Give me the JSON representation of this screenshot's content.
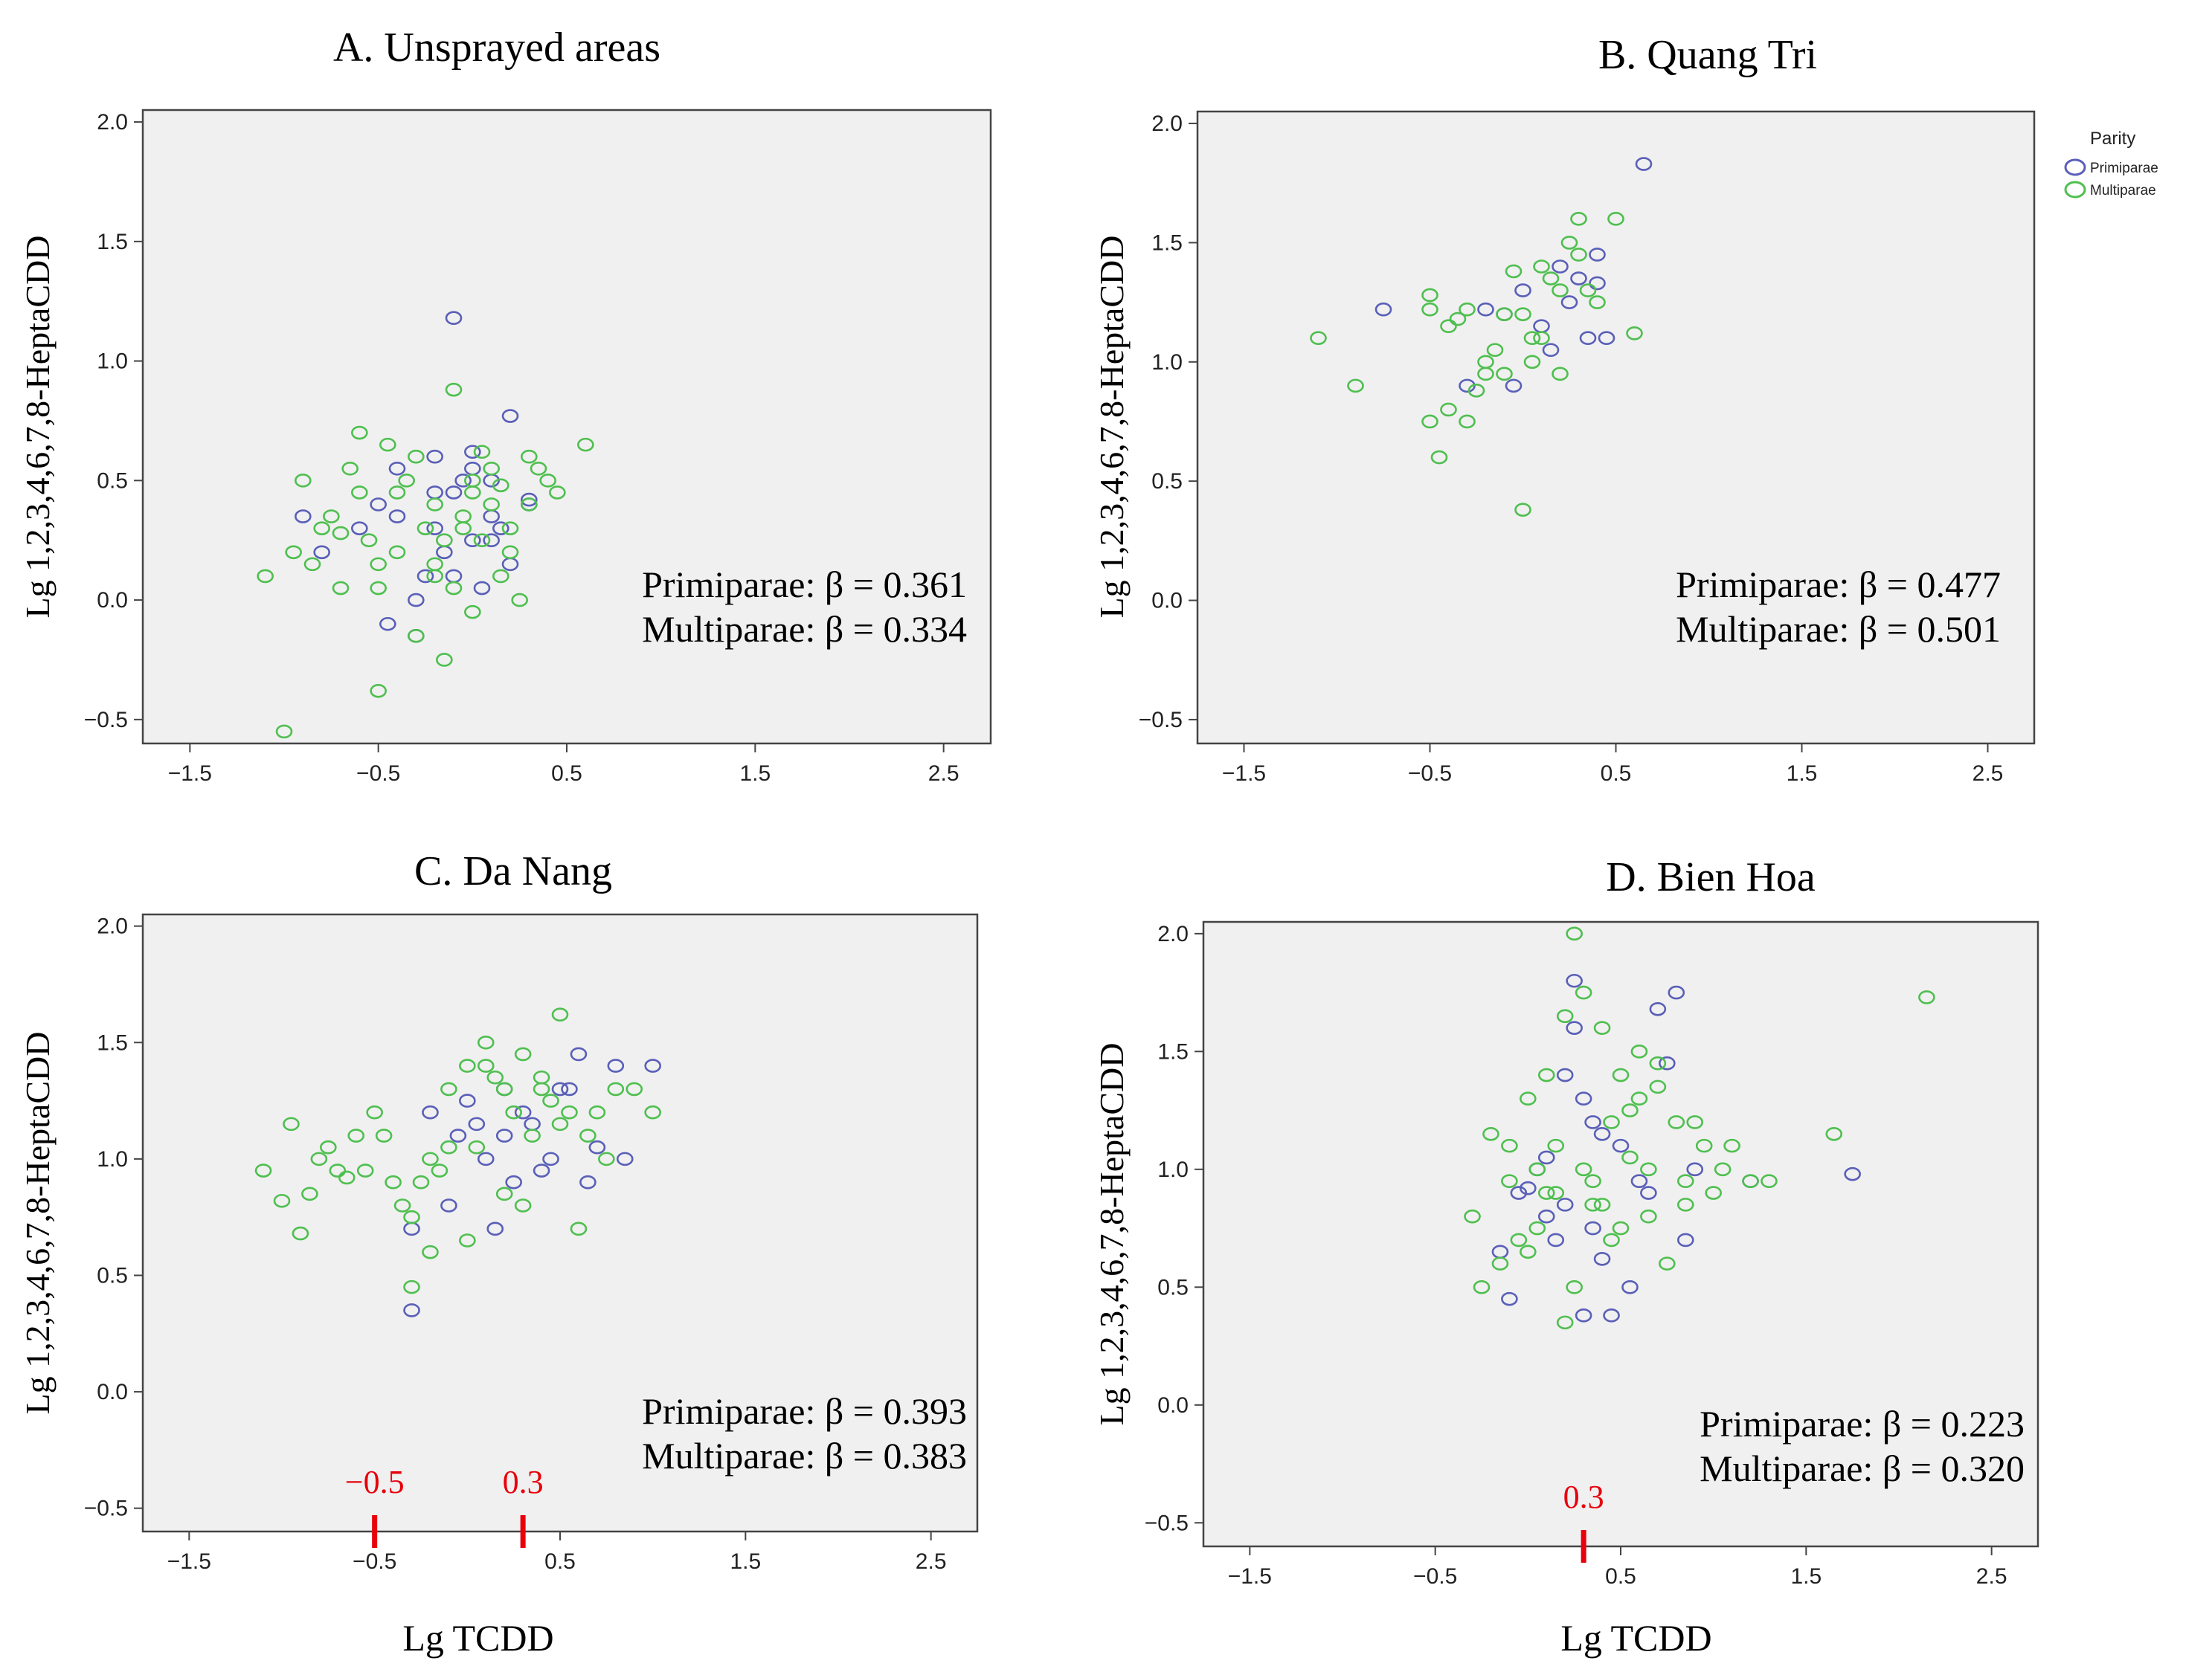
{
  "figure": {
    "legend": {
      "title": "Parity",
      "entries": [
        {
          "name": "Primiparae",
          "color": "#5a5fb8"
        },
        {
          "name": "Multiparae",
          "color": "#4fbf4f"
        }
      ]
    }
  },
  "chart_data": [
    {
      "type": "scatter",
      "title": "A. Unsprayed areas",
      "xlabel": "",
      "ylabel": "Lg 1,2,3,4,6,7,8-HeptaCDD",
      "xlim": [
        -1.75,
        2.75
      ],
      "ylim": [
        -0.6,
        2.05
      ],
      "xticks": [
        -1.5,
        -0.5,
        0.5,
        1.5,
        2.5
      ],
      "xtick_labels": [
        "−1.5",
        "−0.5",
        "0.5",
        "1.5",
        "2.5"
      ],
      "yticks": [
        2.0,
        1.5,
        1.0,
        0.5,
        0.0,
        -0.5
      ],
      "ytick_labels": [
        "2.0",
        "1.5",
        "1.0",
        "0.5",
        "0.0",
        "−0.5"
      ],
      "annotations": [
        "Primiparae: β = 0.361",
        "Multiparae: β = 0.334"
      ],
      "cutoffs": [],
      "series": [
        {
          "name": "Primiparae",
          "x": [
            -0.1,
            0.2,
            -0.4,
            -0.2,
            0.0,
            0.1,
            -0.3,
            0.3,
            -0.5,
            -0.6,
            -0.8,
            -0.9,
            0.0,
            -0.1,
            0.2,
            -0.2,
            -0.4,
            0.05,
            0.1,
            -0.15,
            -0.25,
            0.15,
            0.3,
            -0.05,
            -0.45,
            -0.3,
            0.0,
            -0.2,
            0.1,
            -0.1
          ],
          "y": [
            1.18,
            0.77,
            0.35,
            0.3,
            0.55,
            0.5,
            0.0,
            0.42,
            0.4,
            0.3,
            0.2,
            0.35,
            0.25,
            0.45,
            0.15,
            0.6,
            0.55,
            0.05,
            0.35,
            0.2,
            0.1,
            0.3,
            0.4,
            0.5,
            -0.1,
            -0.15,
            0.62,
            0.45,
            0.25,
            0.1
          ]
        },
        {
          "name": "Multiparae",
          "x": [
            -1.0,
            -0.5,
            -0.1,
            0.6,
            0.4,
            -0.6,
            -0.9,
            -0.8,
            -0.3,
            -0.2,
            0.0,
            0.1,
            0.2,
            -0.4,
            -0.7,
            -1.1,
            0.3,
            -0.5,
            -0.05,
            0.05,
            0.25,
            -0.35,
            -0.15,
            0.15,
            -0.6,
            -0.25,
            0.0,
            -0.45,
            0.1,
            -0.2,
            -0.55,
            0.35,
            -0.75,
            -0.95,
            0.2,
            -0.1,
            0.05,
            -0.3,
            -0.65,
            -0.85,
            -0.4,
            0.45,
            -0.05,
            0.0,
            -0.2,
            -0.5,
            0.15,
            -0.15,
            0.3,
            -0.7
          ],
          "y": [
            -0.55,
            -0.38,
            0.88,
            0.65,
            0.5,
            0.7,
            0.5,
            0.3,
            0.6,
            0.4,
            0.45,
            0.55,
            0.3,
            0.2,
            0.05,
            0.1,
            0.6,
            0.15,
            0.35,
            0.25,
            0.0,
            0.5,
            -0.25,
            0.1,
            0.45,
            0.3,
            -0.05,
            0.65,
            0.4,
            0.15,
            0.25,
            0.55,
            0.35,
            0.2,
            0.2,
            0.05,
            0.62,
            -0.15,
            0.55,
            0.15,
            0.45,
            0.45,
            0.3,
            0.5,
            0.1,
            0.05,
            0.48,
            0.25,
            0.4,
            0.28
          ]
        }
      ]
    },
    {
      "type": "scatter",
      "title": "B. Quang Tri",
      "xlabel": "",
      "ylabel": "Lg 1,2,3,4,6,7,8-HeptaCDD",
      "xlim": [
        -1.75,
        2.75
      ],
      "ylim": [
        -0.6,
        2.05
      ],
      "xticks": [
        -1.5,
        -0.5,
        0.5,
        1.5,
        2.5
      ],
      "xtick_labels": [
        "−1.5",
        "−0.5",
        "0.5",
        "1.5",
        "2.5"
      ],
      "yticks": [
        2.0,
        1.5,
        1.0,
        0.5,
        0.0,
        -0.5
      ],
      "ytick_labels": [
        "2.0",
        "1.5",
        "1.0",
        "0.5",
        "0.0",
        "−0.5"
      ],
      "annotations": [
        "Primiparae: β = 0.477",
        "Multiparae: β = 0.501"
      ],
      "cutoffs": [],
      "series": [
        {
          "name": "Primiparae",
          "x": [
            0.65,
            -0.75,
            -0.2,
            0.0,
            0.4,
            0.2,
            0.45,
            0.1,
            -0.1,
            0.3,
            0.35,
            -0.3,
            -0.05,
            0.25,
            0.15,
            0.4
          ],
          "y": [
            1.83,
            1.22,
            1.22,
            1.3,
            1.45,
            1.4,
            1.1,
            1.15,
            1.2,
            1.35,
            1.1,
            0.9,
            0.9,
            1.25,
            1.05,
            1.33
          ]
        },
        {
          "name": "Multiparae",
          "x": [
            -1.1,
            -0.9,
            -0.5,
            -0.4,
            -0.2,
            0.0,
            0.1,
            0.3,
            0.5,
            0.6,
            -0.3,
            -0.1,
            0.2,
            0.25,
            0.4,
            -0.5,
            -0.35,
            -0.15,
            0.05,
            0.15,
            -0.45,
            -0.25,
            0.0,
            0.35,
            -0.05,
            0.1,
            -0.2,
            -0.4,
            -0.3,
            0.2,
            -0.1,
            0.3,
            0.05,
            -0.5
          ],
          "y": [
            1.1,
            0.9,
            0.75,
            0.8,
            1.0,
            1.2,
            1.4,
            1.6,
            1.6,
            1.12,
            0.75,
            0.95,
            1.3,
            1.5,
            1.25,
            1.28,
            1.18,
            1.05,
            1.1,
            1.35,
            0.6,
            0.88,
            0.38,
            1.3,
            1.38,
            1.1,
            0.95,
            1.15,
            1.22,
            0.95,
            1.2,
            1.45,
            1.0,
            1.22
          ]
        }
      ]
    },
    {
      "type": "scatter",
      "title": "C. Da Nang",
      "xlabel": "Lg TCDD",
      "ylabel": "Lg 1,2,3,4,6,7,8-HeptaCDD",
      "xlim": [
        -1.75,
        2.75
      ],
      "ylim": [
        -0.6,
        2.05
      ],
      "xticks": [
        -1.5,
        -0.5,
        0.5,
        1.5,
        2.5
      ],
      "xtick_labels": [
        "−1.5",
        "−0.5",
        "0.5",
        "1.5",
        "2.5"
      ],
      "yticks": [
        2.0,
        1.5,
        1.0,
        0.5,
        0.0,
        -0.5
      ],
      "ytick_labels": [
        "2.0",
        "1.5",
        "1.0",
        "0.5",
        "0.0",
        "−0.5"
      ],
      "annotations": [
        "Primiparae: β = 0.393",
        "Multiparae: β = 0.383"
      ],
      "cutoffs": [
        {
          "x": -0.5,
          "label": "−0.5"
        },
        {
          "x": 0.3,
          "label": "0.3"
        }
      ],
      "series": [
        {
          "name": "Primiparae",
          "x": [
            -0.3,
            0.8,
            1.0,
            0.6,
            0.2,
            -0.1,
            0.1,
            0.3,
            0.5,
            -0.05,
            0.4,
            0.7,
            0.85,
            0.15,
            -0.2,
            0.0,
            0.25,
            0.35,
            -0.3,
            0.45,
            0.05,
            0.55,
            0.65,
            0.2
          ],
          "y": [
            0.35,
            1.4,
            1.4,
            1.45,
            1.1,
            0.8,
            1.0,
            1.2,
            1.3,
            1.1,
            0.95,
            1.05,
            1.0,
            0.7,
            1.2,
            1.25,
            0.9,
            1.15,
            0.7,
            1.0,
            1.15,
            1.3,
            0.9,
            1.3
          ]
        },
        {
          "name": "Multiparae",
          "x": [
            -1.1,
            -1.0,
            -0.9,
            -0.8,
            -0.7,
            -0.6,
            -0.5,
            -0.4,
            -0.3,
            -0.2,
            -0.1,
            0.0,
            0.1,
            0.2,
            0.3,
            0.4,
            0.5,
            0.6,
            0.7,
            0.8,
            0.9,
            1.0,
            -0.95,
            -0.75,
            -0.55,
            -0.35,
            -0.15,
            0.05,
            0.25,
            0.45,
            0.65,
            -0.85,
            -0.65,
            -0.45,
            -0.25,
            0.15,
            0.35,
            0.55,
            0.75,
            -0.3,
            -0.2,
            0.0,
            0.2,
            0.4,
            0.5,
            0.1,
            -0.1,
            0.3
          ],
          "y": [
            0.95,
            0.82,
            0.68,
            1.0,
            0.95,
            1.1,
            1.2,
            0.9,
            0.45,
            0.6,
            1.3,
            1.4,
            1.5,
            1.3,
            1.45,
            1.35,
            1.62,
            0.7,
            1.2,
            1.3,
            1.3,
            1.2,
            1.15,
            1.05,
            0.95,
            0.8,
            0.95,
            1.05,
            1.2,
            1.25,
            1.1,
            0.85,
            0.92,
            1.1,
            0.9,
            1.35,
            1.1,
            1.2,
            1.0,
            0.75,
            1.0,
            0.65,
            0.85,
            1.3,
            1.15,
            1.4,
            1.05,
            0.8
          ]
        }
      ]
    },
    {
      "type": "scatter",
      "title": "D. Bien Hoa",
      "xlabel": "Lg TCDD",
      "ylabel": "Lg 1,2,3,4,6,7,8-HeptaCDD",
      "xlim": [
        -1.75,
        2.75
      ],
      "ylim": [
        -0.6,
        2.05
      ],
      "xticks": [
        -1.5,
        -0.5,
        0.5,
        1.5,
        2.5
      ],
      "xtick_labels": [
        "−1.5",
        "−0.5",
        "0.5",
        "1.5",
        "2.5"
      ],
      "yticks": [
        2.0,
        1.5,
        1.0,
        0.5,
        0.0,
        -0.5
      ],
      "ytick_labels": [
        "2.0",
        "1.5",
        "1.0",
        "0.5",
        "0.0",
        "−0.5"
      ],
      "annotations": [
        "Primiparae: β = 0.223",
        "Multiparae: β = 0.320"
      ],
      "cutoffs": [
        {
          "x": 0.3,
          "label": "0.3"
        }
      ],
      "series": [
        {
          "name": "Primiparae",
          "x": [
            0.25,
            0.8,
            0.7,
            1.75,
            1.2,
            0.3,
            0.0,
            0.2,
            0.5,
            0.6,
            0.9,
            -0.1,
            0.1,
            0.35,
            0.4,
            0.55,
            0.15,
            -0.05,
            0.05,
            0.3,
            0.45,
            0.65,
            0.85,
            0.25,
            0.2,
            0.4,
            -0.15,
            0.1,
            0.35,
            0.75
          ],
          "y": [
            1.8,
            1.75,
            1.68,
            0.98,
            0.95,
            0.38,
            0.92,
            0.85,
            1.1,
            0.95,
            1.0,
            0.45,
            1.05,
            0.75,
            0.62,
            0.5,
            0.7,
            0.9,
            1.0,
            1.3,
            0.38,
            0.9,
            0.7,
            1.6,
            1.4,
            1.15,
            0.65,
            0.8,
            1.2,
            1.45
          ]
        },
        {
          "name": "Multiparae",
          "x": [
            0.25,
            2.15,
            1.65,
            0.3,
            0.4,
            0.2,
            0.0,
            -0.2,
            -0.3,
            0.1,
            0.5,
            0.6,
            0.7,
            0.8,
            0.9,
            1.0,
            1.1,
            1.2,
            1.3,
            -0.1,
            0.05,
            0.15,
            0.35,
            0.45,
            0.55,
            0.65,
            0.75,
            0.85,
            0.95,
            1.05,
            -0.25,
            -0.15,
            -0.05,
            0.05,
            0.25,
            0.45,
            0.65,
            0.85,
            0.2,
            0.1,
            0.3,
            0.4,
            0.0,
            0.5,
            -0.1,
            0.6,
            0.7,
            0.15,
            0.35,
            0.55
          ],
          "y": [
            2.0,
            1.73,
            1.15,
            1.75,
            1.6,
            1.65,
            1.3,
            1.15,
            0.8,
            1.4,
            1.4,
            1.5,
            1.45,
            1.2,
            1.2,
            0.9,
            1.1,
            0.95,
            0.95,
            1.1,
            1.0,
            0.9,
            0.85,
            0.7,
            1.05,
            0.8,
            0.6,
            0.95,
            1.1,
            1.0,
            0.5,
            0.6,
            0.7,
            0.75,
            0.5,
            1.2,
            1.0,
            0.85,
            0.35,
            0.9,
            1.0,
            0.85,
            0.65,
            0.75,
            0.95,
            1.3,
            1.35,
            1.1,
            0.95,
            1.25
          ]
        }
      ]
    }
  ]
}
